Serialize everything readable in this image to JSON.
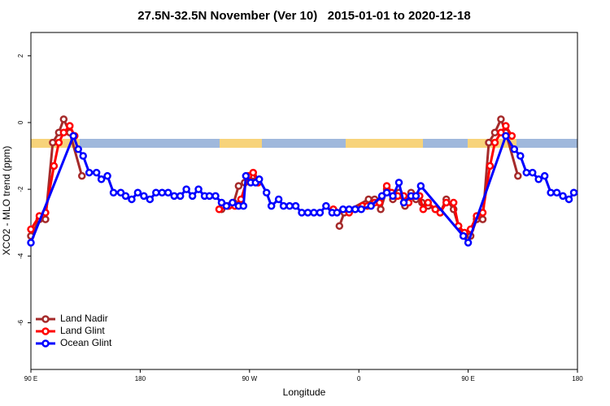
{
  "chart_data": {
    "type": "line",
    "title": "27.5N-32.5N November (Ver 10)   2015-01-01 to 2020-12-18",
    "x_label": "Longitude",
    "y_label": "XCO2 - MLO trend (ppm)",
    "xlim": [
      90,
      540
    ],
    "ylim": [
      -7.4,
      2.7
    ],
    "xticks": [
      {
        "value": 90,
        "label": "90 E"
      },
      {
        "value": 180,
        "label": "180"
      },
      {
        "value": 270,
        "label": "90 W"
      },
      {
        "value": 360,
        "label": "0"
      },
      {
        "value": 450,
        "label": "90 E"
      },
      {
        "value": 540,
        "label": "180"
      }
    ],
    "yticks": [
      2,
      0,
      -2,
      -4,
      -6
    ],
    "legend": "bottom-left",
    "series": [
      {
        "name": "Land Nadir",
        "color": "#a52a2a",
        "x": [
          90,
          97,
          102,
          108,
          113,
          117,
          122,
          132,
          null,
          247,
          252,
          257,
          261,
          266,
          273,
          277,
          null,
          344,
          348,
          368,
          373,
          378,
          383,
          388,
          393,
          398,
          403,
          407,
          412,
          417,
          423,
          427,
          432,
          438,
          442,
          447,
          452,
          457,
          462,
          467,
          472,
          477,
          481,
          491
        ],
        "values": [
          -3.4,
          -2.9,
          -2.9,
          -0.6,
          -0.3,
          0.1,
          -0.3,
          -1.6,
          null,
          -2.6,
          -2.5,
          -2.4,
          -1.9,
          -1.8,
          -1.6,
          -1.8,
          null,
          -3.1,
          -2.7,
          -2.3,
          -2.3,
          -2.6,
          -2.0,
          -2.3,
          -2.1,
          -2.5,
          -2.1,
          -2.3,
          -2.4,
          -2.5,
          -2.6,
          -2.7,
          -2.3,
          -2.6,
          -3.1,
          -3.4,
          -3.4,
          -2.9,
          -2.9,
          -0.6,
          -0.3,
          0.1,
          -0.3,
          -1.6
        ]
      },
      {
        "name": "Land Glint",
        "color": "#ff0000",
        "x": [
          90,
          97,
          102,
          109,
          113,
          117,
          122,
          126,
          null,
          245,
          249,
          253,
          258,
          263,
          269,
          273,
          277,
          null,
          339,
          352,
          357,
          363,
          367,
          373,
          377,
          383,
          387,
          392,
          397,
          401,
          405,
          410,
          413,
          417,
          423,
          427,
          432,
          438,
          442,
          447,
          452,
          457,
          462,
          468,
          472,
          477,
          481,
          486
        ],
        "values": [
          -3.2,
          -2.8,
          -2.7,
          -1.3,
          -0.6,
          -0.3,
          -0.1,
          -0.4,
          null,
          -2.6,
          -2.5,
          -2.5,
          -2.5,
          -2.3,
          -1.6,
          -1.5,
          -1.8,
          null,
          -2.6,
          -2.7,
          -2.6,
          -2.5,
          -2.5,
          -2.4,
          -2.4,
          -1.9,
          -2.1,
          -2.2,
          -2.2,
          -2.4,
          -2.2,
          -2.2,
          -2.6,
          -2.4,
          -2.6,
          -2.7,
          -2.4,
          -2.4,
          -3.1,
          -3.3,
          -3.2,
          -2.8,
          -2.7,
          -1.3,
          -0.6,
          -0.3,
          -0.1,
          -0.4
        ]
      },
      {
        "name": "Ocean Glint",
        "color": "#0000ff",
        "x": [
          90,
          125,
          129,
          133,
          138,
          144,
          148,
          153,
          158,
          164,
          168,
          173,
          178,
          183,
          188,
          193,
          198,
          203,
          208,
          213,
          218,
          223,
          228,
          233,
          237,
          242,
          247,
          251,
          256,
          261,
          265,
          267,
          271,
          275,
          278,
          284,
          288,
          294,
          298,
          303,
          308,
          313,
          318,
          323,
          328,
          333,
          338,
          342,
          347,
          352,
          357,
          362,
          370,
          379,
          383,
          388,
          393,
          397,
          403,
          407,
          411,
          446,
          450,
          481,
          488,
          493,
          498,
          503,
          508,
          513,
          518,
          523,
          528,
          533,
          537
        ],
        "values": [
          -3.6,
          -0.4,
          -0.8,
          -1.0,
          -1.5,
          -1.5,
          -1.7,
          -1.6,
          -2.1,
          -2.1,
          -2.2,
          -2.3,
          -2.1,
          -2.2,
          -2.3,
          -2.1,
          -2.1,
          -2.1,
          -2.2,
          -2.2,
          -2.0,
          -2.2,
          -2.0,
          -2.2,
          -2.2,
          -2.2,
          -2.4,
          -2.5,
          -2.4,
          -2.5,
          -2.5,
          -1.6,
          -1.8,
          -1.8,
          -1.7,
          -2.1,
          -2.5,
          -2.3,
          -2.5,
          -2.5,
          -2.5,
          -2.7,
          -2.7,
          -2.7,
          -2.7,
          -2.5,
          -2.7,
          -2.7,
          -2.6,
          -2.6,
          -2.6,
          -2.6,
          -2.5,
          -2.2,
          -2.1,
          -2.2,
          -1.8,
          -2.4,
          -2.2,
          -2.2,
          -1.9,
          -3.4,
          -3.6,
          -0.4,
          -0.8,
          -1.0,
          -1.5,
          -1.5,
          -1.7,
          -1.6,
          -2.1,
          -2.1,
          -2.2,
          -2.3,
          -2.1
        ]
      }
    ]
  }
}
